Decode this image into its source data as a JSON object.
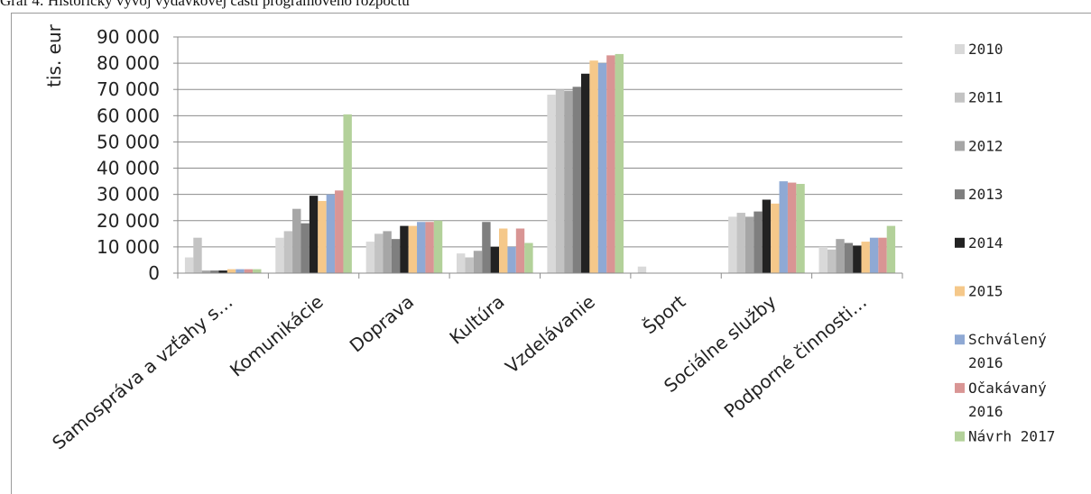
{
  "caption": "Graf 4: Historický vývoj výdavkovej časti programového rozpočtu",
  "chart_data": {
    "type": "bar",
    "ylabel": "tis. eur",
    "ylim": [
      0,
      90000
    ],
    "y_ticks": [
      "0",
      "10 000",
      "20 000",
      "30 000",
      "40 000",
      "50 000",
      "60 000",
      "70 000",
      "80 000",
      "90 000"
    ],
    "grid": true,
    "legend_position": "right",
    "categories": [
      "Samospráva a vzťahy s…",
      "Komunikácie",
      "Doprava",
      "Kultúra",
      "Vzdelávanie",
      "Šport",
      "Sociálne služby",
      "Podporné činnosti…"
    ],
    "series": [
      {
        "name": "2010",
        "name_lines": [
          "2010"
        ],
        "color": "#d9d9d9",
        "values": [
          6000,
          13500,
          12000,
          7500,
          68000,
          2500,
          21500,
          10000
        ]
      },
      {
        "name": "2011",
        "name_lines": [
          "2011"
        ],
        "color": "#c3c3c3",
        "values": [
          13500,
          16000,
          15000,
          6000,
          70000,
          0,
          23000,
          9000
        ]
      },
      {
        "name": "2012",
        "name_lines": [
          "2012"
        ],
        "color": "#a6a6a6",
        "values": [
          1000,
          24500,
          16000,
          8500,
          69500,
          0,
          21500,
          13000
        ]
      },
      {
        "name": "2013",
        "name_lines": [
          "2013"
        ],
        "color": "#7f7f7f",
        "values": [
          1000,
          19000,
          13000,
          19500,
          71000,
          0,
          23500,
          11500
        ]
      },
      {
        "name": "2014",
        "name_lines": [
          "2014"
        ],
        "color": "#222222",
        "values": [
          1000,
          29500,
          18000,
          10000,
          76000,
          0,
          28000,
          10500
        ]
      },
      {
        "name": "2015",
        "name_lines": [
          "2015"
        ],
        "color": "#f5c88a",
        "values": [
          1500,
          27500,
          18000,
          17000,
          81000,
          0,
          26500,
          12000
        ]
      },
      {
        "name": "Schválený 2016",
        "name_lines": [
          "Schválený",
          "2016"
        ],
        "color": "#8fa9d4",
        "values": [
          1500,
          30000,
          19500,
          10000,
          80000,
          0,
          35000,
          13500
        ]
      },
      {
        "name": "Očakávaný 2016",
        "name_lines": [
          "Očakávaný",
          "2016"
        ],
        "color": "#d99594",
        "values": [
          1500,
          31500,
          19500,
          17000,
          83000,
          0,
          34500,
          13500
        ]
      },
      {
        "name": "Návrh  2017",
        "name_lines": [
          "Návrh  2017"
        ],
        "color": "#b3d19a",
        "values": [
          1500,
          60500,
          20000,
          11500,
          83500,
          0,
          34000,
          18000
        ]
      }
    ]
  }
}
